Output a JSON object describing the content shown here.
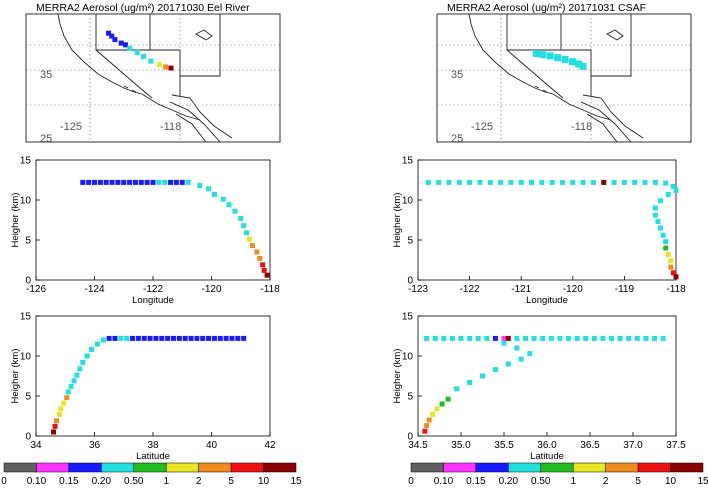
{
  "colorbar": {
    "colors": [
      "#606060",
      "#ff33ff",
      "#1a1aff",
      "#22e0e0",
      "#22bb22",
      "#e6e622",
      "#f08c1e",
      "#ee1111",
      "#8b0000"
    ],
    "labels": [
      "0",
      "0.10",
      "0.15",
      "0.20",
      "0.50",
      "1",
      "2",
      "5",
      "10",
      "15"
    ]
  },
  "chart_data": [
    {
      "type": "map",
      "title": "MERRA2 Aerosol (ug/m²) 20171030  Eel River",
      "lon_range": [
        -132,
        -108
      ],
      "lat_range": [
        22,
        44
      ],
      "tick_labels": [
        "35",
        "-125",
        "-118",
        "25"
      ],
      "track": [
        {
          "lon": -124.2,
          "lat": 40.7,
          "bin": 2
        },
        {
          "lon": -123.9,
          "lat": 40.2,
          "bin": 2
        },
        {
          "lon": -123.6,
          "lat": 39.6,
          "bin": 2
        },
        {
          "lon": -123.0,
          "lat": 39.0,
          "bin": 2
        },
        {
          "lon": -122.6,
          "lat": 38.7,
          "bin": 2
        },
        {
          "lon": -122.2,
          "lat": 38.1,
          "bin": 3
        },
        {
          "lon": -121.5,
          "lat": 37.4,
          "bin": 3
        },
        {
          "lon": -120.9,
          "lat": 36.7,
          "bin": 3
        },
        {
          "lon": -120.2,
          "lat": 35.9,
          "bin": 3
        },
        {
          "lon": -119.4,
          "lat": 35.3,
          "bin": 5
        },
        {
          "lon": -118.8,
          "lat": 34.9,
          "bin": 6
        },
        {
          "lon": -118.3,
          "lat": 34.7,
          "bin": 8
        }
      ]
    },
    {
      "type": "map",
      "title": "MERRA2 Aerosol (ug/m²) 20171031  CSAF",
      "lon_range": [
        -132,
        -108
      ],
      "lat_range": [
        22,
        44
      ],
      "tick_labels": [
        "35",
        "-125",
        "-118",
        "25"
      ],
      "track": [
        {
          "lon": -122.6,
          "lat": 37.2,
          "bin": 3
        },
        {
          "lon": -122.0,
          "lat": 37.0,
          "bin": 3
        },
        {
          "lon": -121.3,
          "lat": 36.8,
          "bin": 3
        },
        {
          "lon": -120.6,
          "lat": 36.5,
          "bin": 3
        },
        {
          "lon": -119.9,
          "lat": 36.2,
          "bin": 3
        },
        {
          "lon": -119.2,
          "lat": 35.8,
          "bin": 3
        },
        {
          "lon": -118.6,
          "lat": 35.4,
          "bin": 3
        },
        {
          "lon": -118.2,
          "lat": 35.0,
          "bin": 3
        }
      ]
    },
    {
      "type": "scatter",
      "xlabel": "Longitude",
      "ylabel": "Heigher (km)",
      "xlim": [
        -126,
        -118
      ],
      "ylim": [
        0,
        15
      ],
      "xticks": [
        -126,
        -124,
        -122,
        -120,
        -118
      ],
      "yticks": [
        0,
        5,
        10,
        15
      ],
      "points": [
        {
          "x": -124.4,
          "y": 12.2,
          "bin": 2
        },
        {
          "x": -124.2,
          "y": 12.2,
          "bin": 2
        },
        {
          "x": -124.0,
          "y": 12.2,
          "bin": 2
        },
        {
          "x": -123.8,
          "y": 12.2,
          "bin": 2
        },
        {
          "x": -123.6,
          "y": 12.2,
          "bin": 2
        },
        {
          "x": -123.4,
          "y": 12.2,
          "bin": 2
        },
        {
          "x": -123.2,
          "y": 12.2,
          "bin": 2
        },
        {
          "x": -123.0,
          "y": 12.2,
          "bin": 2
        },
        {
          "x": -122.8,
          "y": 12.2,
          "bin": 2
        },
        {
          "x": -122.6,
          "y": 12.2,
          "bin": 2
        },
        {
          "x": -122.4,
          "y": 12.2,
          "bin": 2
        },
        {
          "x": -122.2,
          "y": 12.2,
          "bin": 2
        },
        {
          "x": -122.0,
          "y": 12.2,
          "bin": 2
        },
        {
          "x": -121.8,
          "y": 12.2,
          "bin": 3
        },
        {
          "x": -121.6,
          "y": 12.2,
          "bin": 3
        },
        {
          "x": -121.4,
          "y": 12.2,
          "bin": 2
        },
        {
          "x": -121.2,
          "y": 12.2,
          "bin": 2
        },
        {
          "x": -121.0,
          "y": 12.2,
          "bin": 2
        },
        {
          "x": -120.8,
          "y": 12.2,
          "bin": 3
        },
        {
          "x": -120.4,
          "y": 11.8,
          "bin": 3
        },
        {
          "x": -120.1,
          "y": 11.4,
          "bin": 3
        },
        {
          "x": -119.9,
          "y": 10.7,
          "bin": 3
        },
        {
          "x": -119.6,
          "y": 10.1,
          "bin": 3
        },
        {
          "x": -119.4,
          "y": 9.4,
          "bin": 3
        },
        {
          "x": -119.2,
          "y": 8.6,
          "bin": 3
        },
        {
          "x": -119.0,
          "y": 7.7,
          "bin": 3
        },
        {
          "x": -118.9,
          "y": 6.8,
          "bin": 3
        },
        {
          "x": -118.8,
          "y": 5.9,
          "bin": 3
        },
        {
          "x": -118.7,
          "y": 5.1,
          "bin": 5
        },
        {
          "x": -118.6,
          "y": 4.3,
          "bin": 6
        },
        {
          "x": -118.45,
          "y": 3.5,
          "bin": 6
        },
        {
          "x": -118.35,
          "y": 2.7,
          "bin": 6
        },
        {
          "x": -118.25,
          "y": 1.9,
          "bin": 7
        },
        {
          "x": -118.2,
          "y": 1.2,
          "bin": 7
        },
        {
          "x": -118.1,
          "y": 0.6,
          "bin": 8
        }
      ]
    },
    {
      "type": "scatter",
      "xlabel": "Longitude",
      "ylabel": "Heigher (km)",
      "xlim": [
        -123,
        -118
      ],
      "ylim": [
        0,
        15
      ],
      "xticks": [
        -123,
        -122,
        -121,
        -120,
        -119,
        -118
      ],
      "yticks": [
        0,
        5,
        10,
        15
      ],
      "points": [
        {
          "x": -122.8,
          "y": 12.2,
          "bin": 3
        },
        {
          "x": -122.6,
          "y": 12.2,
          "bin": 3
        },
        {
          "x": -122.4,
          "y": 12.2,
          "bin": 3
        },
        {
          "x": -122.2,
          "y": 12.2,
          "bin": 3
        },
        {
          "x": -122.0,
          "y": 12.2,
          "bin": 3
        },
        {
          "x": -121.8,
          "y": 12.2,
          "bin": 3
        },
        {
          "x": -121.6,
          "y": 12.2,
          "bin": 3
        },
        {
          "x": -121.4,
          "y": 12.2,
          "bin": 3
        },
        {
          "x": -121.2,
          "y": 12.2,
          "bin": 3
        },
        {
          "x": -121.0,
          "y": 12.2,
          "bin": 3
        },
        {
          "x": -120.8,
          "y": 12.2,
          "bin": 3
        },
        {
          "x": -120.6,
          "y": 12.2,
          "bin": 3
        },
        {
          "x": -120.4,
          "y": 12.2,
          "bin": 3
        },
        {
          "x": -120.2,
          "y": 12.2,
          "bin": 3
        },
        {
          "x": -120.0,
          "y": 12.2,
          "bin": 3
        },
        {
          "x": -119.8,
          "y": 12.2,
          "bin": 3
        },
        {
          "x": -119.6,
          "y": 12.2,
          "bin": 3
        },
        {
          "x": -119.4,
          "y": 12.2,
          "bin": 8
        },
        {
          "x": -119.2,
          "y": 12.2,
          "bin": 3
        },
        {
          "x": -119.0,
          "y": 12.2,
          "bin": 3
        },
        {
          "x": -118.8,
          "y": 12.2,
          "bin": 3
        },
        {
          "x": -118.6,
          "y": 12.2,
          "bin": 3
        },
        {
          "x": -118.4,
          "y": 12.2,
          "bin": 3
        },
        {
          "x": -118.2,
          "y": 12.1,
          "bin": 3
        },
        {
          "x": -118.05,
          "y": 11.7,
          "bin": 3
        },
        {
          "x": -118.0,
          "y": 11.2,
          "bin": 3
        },
        {
          "x": -118.15,
          "y": 10.7,
          "bin": 3
        },
        {
          "x": -118.3,
          "y": 9.9,
          "bin": 3
        },
        {
          "x": -118.4,
          "y": 9.0,
          "bin": 3
        },
        {
          "x": -118.4,
          "y": 8.1,
          "bin": 3
        },
        {
          "x": -118.35,
          "y": 7.3,
          "bin": 3
        },
        {
          "x": -118.3,
          "y": 6.5,
          "bin": 3
        },
        {
          "x": -118.25,
          "y": 5.6,
          "bin": 3
        },
        {
          "x": -118.2,
          "y": 4.8,
          "bin": 3
        },
        {
          "x": -118.2,
          "y": 4.0,
          "bin": 4
        },
        {
          "x": -118.15,
          "y": 3.2,
          "bin": 5
        },
        {
          "x": -118.1,
          "y": 2.4,
          "bin": 5
        },
        {
          "x": -118.1,
          "y": 1.6,
          "bin": 6
        },
        {
          "x": -118.05,
          "y": 0.9,
          "bin": 7
        },
        {
          "x": -118.0,
          "y": 0.4,
          "bin": 8
        }
      ]
    },
    {
      "type": "scatter",
      "xlabel": "Latitude",
      "ylabel": "Heigher (km)",
      "xlim": [
        34,
        42
      ],
      "ylim": [
        0,
        15
      ],
      "xticks": [
        34,
        36,
        38,
        40,
        42
      ],
      "yticks": [
        0,
        5,
        10,
        15
      ],
      "points": [
        {
          "x": 34.6,
          "y": 0.5,
          "bin": 8
        },
        {
          "x": 34.65,
          "y": 1.2,
          "bin": 7
        },
        {
          "x": 34.7,
          "y": 1.9,
          "bin": 6
        },
        {
          "x": 34.8,
          "y": 2.7,
          "bin": 5
        },
        {
          "x": 34.85,
          "y": 3.4,
          "bin": 5
        },
        {
          "x": 34.95,
          "y": 4.1,
          "bin": 5
        },
        {
          "x": 35.05,
          "y": 4.8,
          "bin": 6
        },
        {
          "x": 35.1,
          "y": 5.5,
          "bin": 3
        },
        {
          "x": 35.2,
          "y": 6.2,
          "bin": 3
        },
        {
          "x": 35.3,
          "y": 6.9,
          "bin": 3
        },
        {
          "x": 35.4,
          "y": 7.6,
          "bin": 3
        },
        {
          "x": 35.5,
          "y": 8.4,
          "bin": 3
        },
        {
          "x": 35.6,
          "y": 9.2,
          "bin": 3
        },
        {
          "x": 35.75,
          "y": 10.0,
          "bin": 3
        },
        {
          "x": 35.9,
          "y": 10.8,
          "bin": 3
        },
        {
          "x": 36.1,
          "y": 11.5,
          "bin": 3
        },
        {
          "x": 36.3,
          "y": 12.0,
          "bin": 3
        },
        {
          "x": 36.5,
          "y": 12.2,
          "bin": 2
        },
        {
          "x": 36.7,
          "y": 12.2,
          "bin": 2
        },
        {
          "x": 36.9,
          "y": 12.2,
          "bin": 3
        },
        {
          "x": 37.1,
          "y": 12.2,
          "bin": 3
        },
        {
          "x": 37.3,
          "y": 12.2,
          "bin": 2
        },
        {
          "x": 37.5,
          "y": 12.2,
          "bin": 2
        },
        {
          "x": 37.7,
          "y": 12.2,
          "bin": 2
        },
        {
          "x": 37.9,
          "y": 12.2,
          "bin": 2
        },
        {
          "x": 38.1,
          "y": 12.2,
          "bin": 2
        },
        {
          "x": 38.3,
          "y": 12.2,
          "bin": 2
        },
        {
          "x": 38.5,
          "y": 12.2,
          "bin": 2
        },
        {
          "x": 38.7,
          "y": 12.2,
          "bin": 2
        },
        {
          "x": 38.9,
          "y": 12.2,
          "bin": 2
        },
        {
          "x": 39.1,
          "y": 12.2,
          "bin": 2
        },
        {
          "x": 39.3,
          "y": 12.2,
          "bin": 2
        },
        {
          "x": 39.5,
          "y": 12.2,
          "bin": 2
        },
        {
          "x": 39.7,
          "y": 12.2,
          "bin": 2
        },
        {
          "x": 39.9,
          "y": 12.2,
          "bin": 2
        },
        {
          "x": 40.1,
          "y": 12.2,
          "bin": 2
        },
        {
          "x": 40.3,
          "y": 12.2,
          "bin": 2
        },
        {
          "x": 40.5,
          "y": 12.2,
          "bin": 2
        },
        {
          "x": 40.7,
          "y": 12.2,
          "bin": 2
        },
        {
          "x": 40.9,
          "y": 12.2,
          "bin": 2
        },
        {
          "x": 41.1,
          "y": 12.2,
          "bin": 2
        }
      ]
    },
    {
      "type": "scatter",
      "xlabel": "Latitude",
      "ylabel": "Heigher (km)",
      "xlim": [
        34.5,
        37.5
      ],
      "ylim": [
        0,
        15
      ],
      "xticks": [
        "34.5",
        "35.0",
        "35.5",
        "36.0",
        "36.5",
        "37.0",
        "37.5"
      ],
      "yticks": [
        0,
        5,
        10,
        15
      ],
      "points": [
        {
          "x": 34.6,
          "y": 12.2,
          "bin": 3
        },
        {
          "x": 34.7,
          "y": 12.2,
          "bin": 3
        },
        {
          "x": 34.8,
          "y": 12.2,
          "bin": 3
        },
        {
          "x": 34.9,
          "y": 12.2,
          "bin": 3
        },
        {
          "x": 35.0,
          "y": 12.2,
          "bin": 3
        },
        {
          "x": 35.1,
          "y": 12.2,
          "bin": 3
        },
        {
          "x": 35.2,
          "y": 12.2,
          "bin": 3
        },
        {
          "x": 35.3,
          "y": 12.2,
          "bin": 3
        },
        {
          "x": 35.4,
          "y": 12.2,
          "bin": 2
        },
        {
          "x": 35.5,
          "y": 12.2,
          "bin": 1
        },
        {
          "x": 35.55,
          "y": 12.2,
          "bin": 8
        },
        {
          "x": 35.65,
          "y": 12.2,
          "bin": 3
        },
        {
          "x": 35.75,
          "y": 12.2,
          "bin": 3
        },
        {
          "x": 35.85,
          "y": 12.2,
          "bin": 3
        },
        {
          "x": 35.95,
          "y": 12.2,
          "bin": 3
        },
        {
          "x": 36.05,
          "y": 12.2,
          "bin": 3
        },
        {
          "x": 36.15,
          "y": 12.2,
          "bin": 3
        },
        {
          "x": 36.25,
          "y": 12.2,
          "bin": 3
        },
        {
          "x": 36.35,
          "y": 12.2,
          "bin": 3
        },
        {
          "x": 36.45,
          "y": 12.2,
          "bin": 3
        },
        {
          "x": 36.55,
          "y": 12.2,
          "bin": 3
        },
        {
          "x": 36.65,
          "y": 12.2,
          "bin": 3
        },
        {
          "x": 36.75,
          "y": 12.2,
          "bin": 3
        },
        {
          "x": 36.85,
          "y": 12.2,
          "bin": 3
        },
        {
          "x": 36.95,
          "y": 12.2,
          "bin": 3
        },
        {
          "x": 37.05,
          "y": 12.2,
          "bin": 3
        },
        {
          "x": 37.15,
          "y": 12.2,
          "bin": 3
        },
        {
          "x": 37.25,
          "y": 12.2,
          "bin": 3
        },
        {
          "x": 37.35,
          "y": 12.2,
          "bin": 3
        },
        {
          "x": 35.5,
          "y": 11.6,
          "bin": 3
        },
        {
          "x": 35.65,
          "y": 11.0,
          "bin": 3
        },
        {
          "x": 35.8,
          "y": 10.3,
          "bin": 3
        },
        {
          "x": 35.7,
          "y": 9.6,
          "bin": 3
        },
        {
          "x": 35.55,
          "y": 9.0,
          "bin": 3
        },
        {
          "x": 35.4,
          "y": 8.3,
          "bin": 3
        },
        {
          "x": 35.25,
          "y": 7.5,
          "bin": 3
        },
        {
          "x": 35.1,
          "y": 6.7,
          "bin": 3
        },
        {
          "x": 34.95,
          "y": 5.9,
          "bin": 3
        },
        {
          "x": 34.85,
          "y": 4.6,
          "bin": 4
        },
        {
          "x": 34.78,
          "y": 4.0,
          "bin": 4
        },
        {
          "x": 34.72,
          "y": 3.4,
          "bin": 5
        },
        {
          "x": 34.67,
          "y": 2.7,
          "bin": 5
        },
        {
          "x": 34.63,
          "y": 2.0,
          "bin": 6
        },
        {
          "x": 34.6,
          "y": 1.3,
          "bin": 6
        },
        {
          "x": 34.58,
          "y": 0.6,
          "bin": 7
        }
      ]
    }
  ]
}
